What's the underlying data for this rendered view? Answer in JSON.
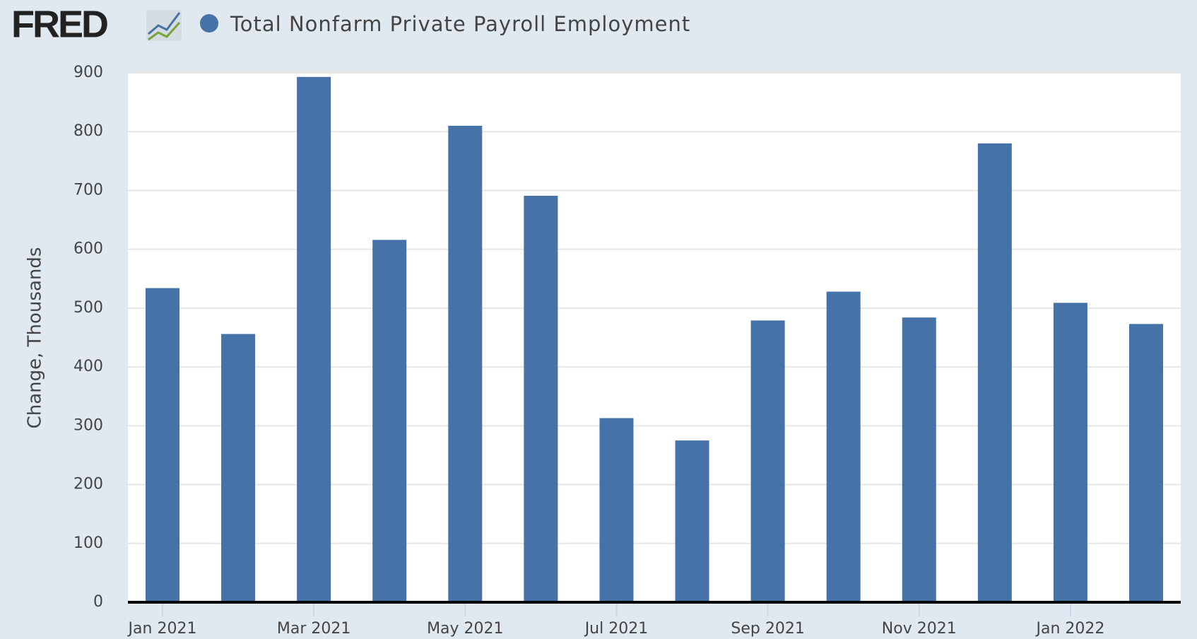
{
  "logo": "FRED",
  "chart_data": {
    "type": "bar",
    "categories": [
      "Jan 2021",
      null,
      "Mar 2021",
      null,
      "May 2021",
      null,
      "Jul 2021",
      null,
      "Sep 2021",
      null,
      "Nov 2021",
      null,
      "Jan 2022",
      null
    ],
    "series": [
      {
        "name": "Total Nonfarm Private Payroll Employment",
        "color": "#4572a7",
        "values": [
          534,
          456,
          893,
          616,
          810,
          691,
          313,
          275,
          479,
          528,
          484,
          780,
          509,
          473
        ]
      }
    ],
    "y_label": "Change, Thousands",
    "ylim": [
      0,
      900
    ],
    "yticks": [
      0,
      100,
      200,
      300,
      400,
      500,
      600,
      700,
      800,
      900
    ],
    "grid": true
  }
}
